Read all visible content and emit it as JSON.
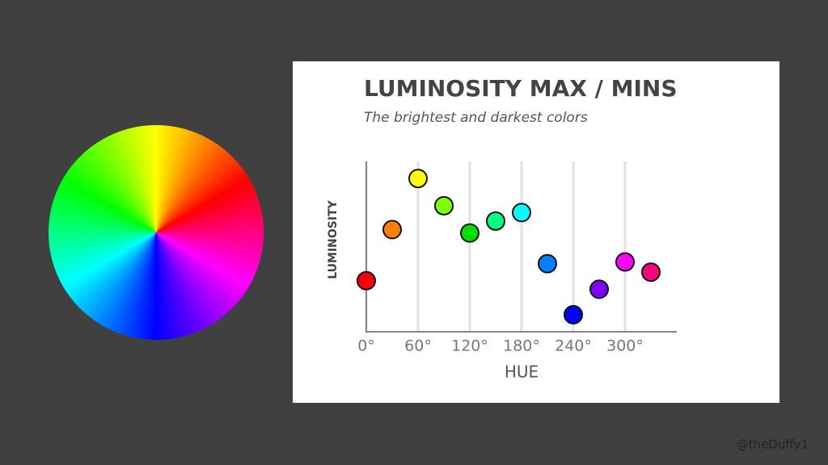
{
  "chart_data": {
    "type": "scatter",
    "title": "LUMINOSITY MAX / MINS",
    "subtitle": "The brightest and darkest colors",
    "xlabel": "HUE",
    "ylabel": "LUMINOSITY",
    "x": [
      0,
      30,
      60,
      90,
      120,
      150,
      180,
      210,
      240,
      270,
      300,
      330
    ],
    "values": [
      30,
      60,
      90,
      74,
      58,
      65,
      70,
      40,
      10,
      25,
      41,
      35
    ],
    "colors": [
      "#ff0000",
      "#ff8000",
      "#ffff00",
      "#80ff00",
      "#00e000",
      "#00ff80",
      "#00ffff",
      "#0080ff",
      "#0000ff",
      "#8000ff",
      "#ff00ff",
      "#ff0080"
    ],
    "xlim": [
      0,
      360
    ],
    "ylim": [
      0,
      100
    ],
    "xticks": [
      {
        "value": 0,
        "label": "0°"
      },
      {
        "value": 60,
        "label": "60°"
      },
      {
        "value": 120,
        "label": "120°"
      },
      {
        "value": 180,
        "label": "180°"
      },
      {
        "value": 240,
        "label": "240°"
      },
      {
        "value": 300,
        "label": "300°"
      }
    ],
    "grid": true
  },
  "watermark": "@theDuffy1"
}
